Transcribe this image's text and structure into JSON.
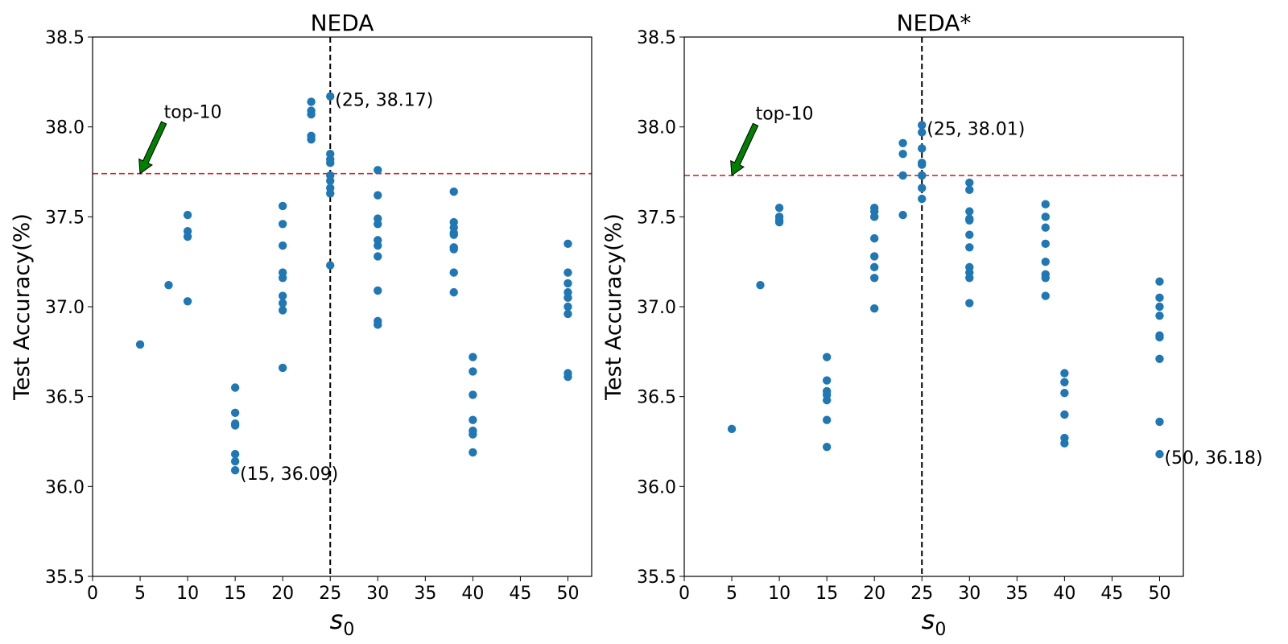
{
  "chart_data": [
    {
      "type": "scatter",
      "title": "NEDA",
      "xlabel_main": "s",
      "xlabel_sub": "0",
      "ylabel": "Test Accuracy(%)",
      "xlim": [
        0,
        52.5
      ],
      "ylim": [
        35.5,
        38.5
      ],
      "xticks": [
        0,
        5,
        10,
        15,
        20,
        25,
        30,
        35,
        40,
        45,
        50
      ],
      "yticks": [
        35.5,
        36.0,
        36.5,
        37.0,
        37.5,
        38.0,
        38.5
      ],
      "ytick_labels": [
        "35.5",
        "36.0",
        "36.5",
        "37.0",
        "37.5",
        "38.0",
        "38.5"
      ],
      "point_color": "#1f77b4",
      "vline": {
        "x": 25,
        "color": "#000000",
        "style": "dashed"
      },
      "hline": {
        "y": 37.74,
        "color": "#d62728",
        "style": "dashed"
      },
      "top_label": {
        "text": "top-10",
        "arrow_target": [
          5,
          37.74
        ],
        "text_pos": [
          7.5,
          38.05
        ],
        "arrow_color": "#008000"
      },
      "annotations": [
        {
          "text": "(25, 38.17)",
          "x": 25,
          "y": 38.17
        },
        {
          "text": "(15, 36.09)",
          "x": 15,
          "y": 36.09
        }
      ],
      "series": [
        {
          "points": [
            [
              5,
              36.79
            ],
            [
              8,
              37.12
            ],
            [
              10,
              37.51
            ],
            [
              10,
              37.42
            ],
            [
              10,
              37.39
            ],
            [
              10,
              37.03
            ],
            [
              15,
              36.55
            ],
            [
              15,
              36.41
            ],
            [
              15,
              36.35
            ],
            [
              15,
              36.34
            ],
            [
              15,
              36.18
            ],
            [
              15,
              36.14
            ],
            [
              15,
              36.09
            ],
            [
              20,
              37.56
            ],
            [
              20,
              37.46
            ],
            [
              20,
              37.34
            ],
            [
              20,
              37.19
            ],
            [
              20,
              37.16
            ],
            [
              20,
              37.06
            ],
            [
              20,
              37.02
            ],
            [
              20,
              36.98
            ],
            [
              20,
              36.66
            ],
            [
              23,
              38.14
            ],
            [
              23,
              38.09
            ],
            [
              23,
              38.07
            ],
            [
              23,
              37.95
            ],
            [
              23,
              37.93
            ],
            [
              25,
              38.17
            ],
            [
              25,
              37.85
            ],
            [
              25,
              37.82
            ],
            [
              25,
              37.8
            ],
            [
              25,
              37.73
            ],
            [
              25,
              37.7
            ],
            [
              25,
              37.66
            ],
            [
              25,
              37.63
            ],
            [
              25,
              37.23
            ],
            [
              30,
              37.76
            ],
            [
              30,
              37.62
            ],
            [
              30,
              37.49
            ],
            [
              30,
              37.46
            ],
            [
              30,
              37.37
            ],
            [
              30,
              37.34
            ],
            [
              30,
              37.28
            ],
            [
              30,
              37.09
            ],
            [
              30,
              36.92
            ],
            [
              30,
              36.9
            ],
            [
              38,
              37.64
            ],
            [
              38,
              37.47
            ],
            [
              38,
              37.44
            ],
            [
              38,
              37.41
            ],
            [
              38,
              37.4
            ],
            [
              38,
              37.33
            ],
            [
              38,
              37.32
            ],
            [
              38,
              37.19
            ],
            [
              38,
              37.08
            ],
            [
              40,
              36.72
            ],
            [
              40,
              36.64
            ],
            [
              40,
              36.51
            ],
            [
              40,
              36.37
            ],
            [
              40,
              36.31
            ],
            [
              40,
              36.29
            ],
            [
              40,
              36.19
            ],
            [
              50,
              37.35
            ],
            [
              50,
              37.19
            ],
            [
              50,
              37.13
            ],
            [
              50,
              37.08
            ],
            [
              50,
              37.05
            ],
            [
              50,
              37.0
            ],
            [
              50,
              36.96
            ],
            [
              50,
              36.63
            ],
            [
              50,
              36.61
            ]
          ]
        }
      ]
    },
    {
      "type": "scatter",
      "title": "NEDA*",
      "xlabel_main": "s",
      "xlabel_sub": "0",
      "ylabel": "Test Accuracy(%)",
      "xlim": [
        0,
        52.5
      ],
      "ylim": [
        35.5,
        38.5
      ],
      "xticks": [
        0,
        5,
        10,
        15,
        20,
        25,
        30,
        35,
        40,
        45,
        50
      ],
      "yticks": [
        35.5,
        36.0,
        36.5,
        37.0,
        37.5,
        38.0,
        38.5
      ],
      "ytick_labels": [
        "35.5",
        "36.0",
        "36.5",
        "37.0",
        "37.5",
        "38.0",
        "38.5"
      ],
      "point_color": "#1f77b4",
      "vline": {
        "x": 25,
        "color": "#000000",
        "style": "dashed"
      },
      "hline": {
        "y": 37.73,
        "color": "#d62728",
        "style": "dashed"
      },
      "top_label": {
        "text": "top-10",
        "arrow_target": [
          5,
          37.73
        ],
        "text_pos": [
          7.5,
          38.04
        ],
        "arrow_color": "#008000"
      },
      "annotations": [
        {
          "text": "(25, 38.01)",
          "x": 25,
          "y": 38.01
        },
        {
          "text": "(50, 36.18)",
          "x": 50,
          "y": 36.18
        }
      ],
      "series": [
        {
          "points": [
            [
              5,
              36.32
            ],
            [
              8,
              37.12
            ],
            [
              10,
              37.55
            ],
            [
              10,
              37.5
            ],
            [
              10,
              37.48
            ],
            [
              10,
              37.47
            ],
            [
              15,
              36.72
            ],
            [
              15,
              36.59
            ],
            [
              15,
              36.53
            ],
            [
              15,
              36.51
            ],
            [
              15,
              36.48
            ],
            [
              15,
              36.37
            ],
            [
              15,
              36.22
            ],
            [
              20,
              37.55
            ],
            [
              20,
              37.53
            ],
            [
              20,
              37.5
            ],
            [
              20,
              37.38
            ],
            [
              20,
              37.28
            ],
            [
              20,
              37.22
            ],
            [
              20,
              37.16
            ],
            [
              20,
              36.99
            ],
            [
              23,
              37.91
            ],
            [
              23,
              37.85
            ],
            [
              23,
              37.73
            ],
            [
              23,
              37.51
            ],
            [
              25,
              38.01
            ],
            [
              25,
              37.97
            ],
            [
              25,
              37.88
            ],
            [
              25,
              37.8
            ],
            [
              25,
              37.79
            ],
            [
              25,
              37.73
            ],
            [
              25,
              37.66
            ],
            [
              25,
              37.6
            ],
            [
              30,
              37.69
            ],
            [
              30,
              37.65
            ],
            [
              30,
              37.53
            ],
            [
              30,
              37.49
            ],
            [
              30,
              37.48
            ],
            [
              30,
              37.4
            ],
            [
              30,
              37.33
            ],
            [
              30,
              37.22
            ],
            [
              30,
              37.19
            ],
            [
              30,
              37.16
            ],
            [
              30,
              37.02
            ],
            [
              38,
              37.57
            ],
            [
              38,
              37.5
            ],
            [
              38,
              37.44
            ],
            [
              38,
              37.35
            ],
            [
              38,
              37.25
            ],
            [
              38,
              37.18
            ],
            [
              38,
              37.16
            ],
            [
              38,
              37.06
            ],
            [
              40,
              36.63
            ],
            [
              40,
              36.58
            ],
            [
              40,
              36.52
            ],
            [
              40,
              36.4
            ],
            [
              40,
              36.27
            ],
            [
              40,
              36.24
            ],
            [
              50,
              37.14
            ],
            [
              50,
              37.05
            ],
            [
              50,
              37.0
            ],
            [
              50,
              36.95
            ],
            [
              50,
              36.84
            ],
            [
              50,
              36.83
            ],
            [
              50,
              36.71
            ],
            [
              50,
              36.36
            ],
            [
              50,
              36.18
            ]
          ]
        }
      ]
    }
  ]
}
